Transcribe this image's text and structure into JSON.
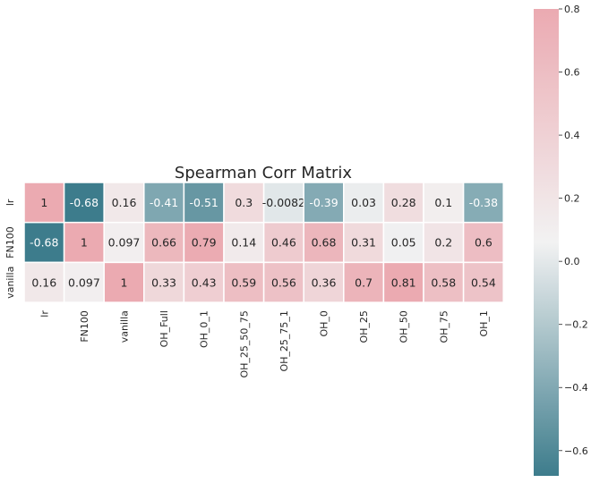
{
  "chart_data": {
    "type": "heatmap",
    "title": "Spearman Corr Matrix",
    "xlabel": "",
    "ylabel": "",
    "rows": [
      "lr",
      "FN100",
      "vanilla"
    ],
    "columns": [
      "lr",
      "FN100",
      "vanilla",
      "OH_Full",
      "OH_0_1",
      "OH_25_50_75",
      "OH_25_75_1",
      "OH_0",
      "OH_25",
      "OH_50",
      "OH_75",
      "OH_1"
    ],
    "values": [
      [
        1,
        -0.68,
        0.16,
        -0.41,
        -0.51,
        0.3,
        -0.0082,
        -0.39,
        0.03,
        0.28,
        0.1,
        -0.38
      ],
      [
        -0.68,
        1,
        0.097,
        0.66,
        0.79,
        0.14,
        0.46,
        0.68,
        0.31,
        0.05,
        0.2,
        0.6
      ],
      [
        0.16,
        0.097,
        1,
        0.33,
        0.43,
        0.59,
        0.56,
        0.36,
        0.7,
        0.81,
        0.58,
        0.54
      ]
    ],
    "cell_labels": [
      [
        "1",
        "-0.68",
        "0.16",
        "-0.41",
        "-0.51",
        "0.3",
        "-0.0082",
        "-0.39",
        "0.03",
        "0.28",
        "0.1",
        "-0.38"
      ],
      [
        "-0.68",
        "1",
        "0.097",
        "0.66",
        "0.79",
        "0.14",
        "0.46",
        "0.68",
        "0.31",
        "0.05",
        "0.2",
        "0.6"
      ],
      [
        "0.16",
        "0.097",
        "1",
        "0.33",
        "0.43",
        "0.59",
        "0.56",
        "0.36",
        "0.7",
        "0.81",
        "0.58",
        "0.54"
      ]
    ],
    "colorbar": {
      "vmin": -0.68,
      "vmax": 0.8,
      "ticks": [
        0.8,
        0.6,
        0.4,
        0.2,
        0.0,
        -0.2,
        -0.4,
        -0.6
      ],
      "tick_labels": [
        "0.8",
        "0.6",
        "0.4",
        "0.2",
        "0.0",
        "−0.2",
        "−0.4",
        "−0.6"
      ]
    },
    "colors": {
      "negative": "#3d7c8c",
      "center": "#f2f2f2",
      "positive": "#ebaab1",
      "cell_border": "#ffffff"
    }
  }
}
